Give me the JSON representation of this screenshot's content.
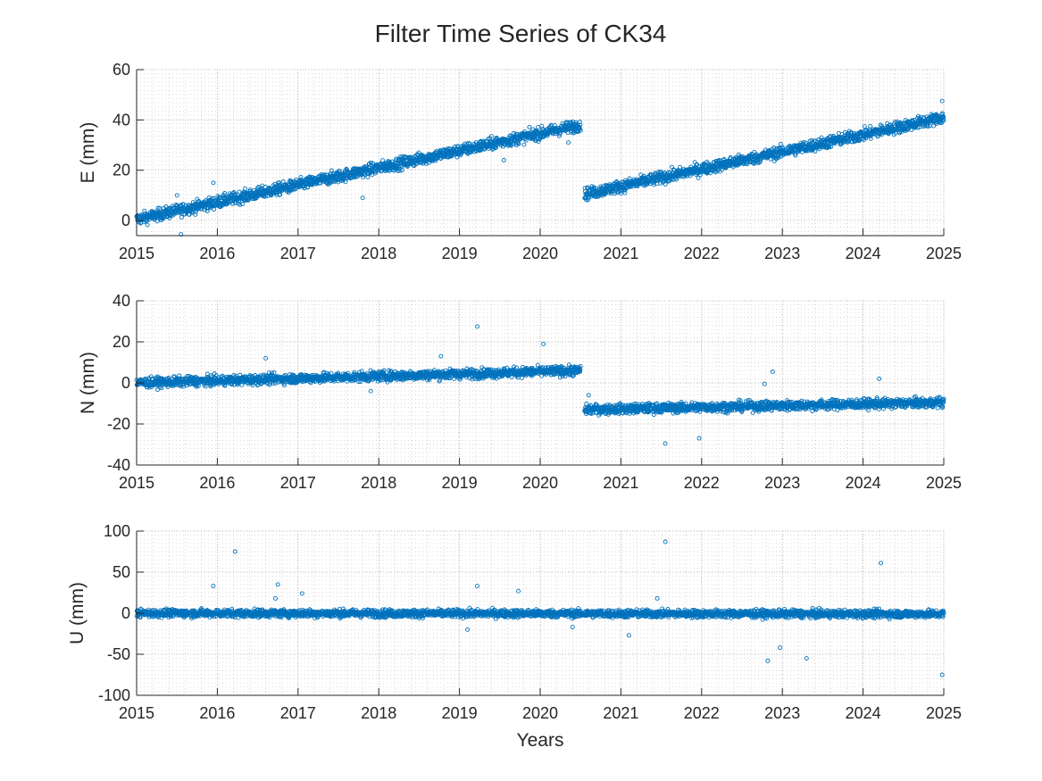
{
  "figure": {
    "title": "Filter Time Series of CK34",
    "xlabel": "Years"
  },
  "colors": {
    "marker": "#0072BD",
    "axis": "#262626",
    "grid": "#c8c8c8",
    "background": "#ffffff"
  },
  "chart_data": [
    {
      "type": "scatter",
      "marker": "open-circle",
      "grid": "major-and-minor-dotted",
      "xlim": [
        2015,
        2025
      ],
      "ylim": [
        -6,
        60
      ],
      "xticks": [
        2015,
        2016,
        2017,
        2018,
        2019,
        2020,
        2021,
        2022,
        2023,
        2024,
        2025
      ],
      "yticks": [
        0,
        20,
        40,
        60
      ],
      "ylabel": "E (mm)",
      "segments": [
        {
          "x": [
            2015.0,
            2020.5
          ],
          "y": [
            0.5,
            38.0
          ],
          "noise": 2.0
        },
        {
          "x": [
            2020.55,
            2025.0
          ],
          "y": [
            10.5,
            41.0
          ],
          "noise": 2.0
        }
      ],
      "outliers": [
        [
          2015.55,
          -5.5
        ],
        [
          2015.95,
          15
        ],
        [
          2017.8,
          9
        ],
        [
          2019.55,
          24
        ],
        [
          2020.35,
          31
        ],
        [
          2024.98,
          47.5
        ],
        [
          2015.5,
          10
        ]
      ]
    },
    {
      "type": "scatter",
      "marker": "open-circle",
      "grid": "major-and-minor-dotted",
      "xlim": [
        2015,
        2025
      ],
      "ylim": [
        -40,
        40
      ],
      "xticks": [
        2015,
        2016,
        2017,
        2018,
        2019,
        2020,
        2021,
        2022,
        2023,
        2024,
        2025
      ],
      "yticks": [
        -40,
        -20,
        0,
        20,
        40
      ],
      "ylabel": "N (mm)",
      "segments": [
        {
          "x": [
            2015.0,
            2020.5
          ],
          "y": [
            0.0,
            6.0
          ],
          "noise": 2.0
        },
        {
          "x": [
            2020.55,
            2025.0
          ],
          "y": [
            -13.0,
            -9.5
          ],
          "noise": 2.0
        }
      ],
      "outliers": [
        [
          2019.22,
          27.5
        ],
        [
          2020.04,
          19
        ],
        [
          2016.6,
          12
        ],
        [
          2018.77,
          13
        ],
        [
          2021.55,
          -29.5
        ],
        [
          2021.97,
          -27
        ],
        [
          2022.78,
          -0.5
        ],
        [
          2022.88,
          5.5
        ],
        [
          2024.2,
          2
        ],
        [
          2020.6,
          -6
        ],
        [
          2017.9,
          -4
        ]
      ]
    },
    {
      "type": "scatter",
      "marker": "open-circle",
      "grid": "major-and-minor-dotted",
      "xlim": [
        2015,
        2025
      ],
      "ylim": [
        -100,
        100
      ],
      "xticks": [
        2015,
        2016,
        2017,
        2018,
        2019,
        2020,
        2021,
        2022,
        2023,
        2024,
        2025
      ],
      "yticks": [
        -100,
        -50,
        0,
        50,
        100
      ],
      "ylabel": "U (mm)",
      "segments": [
        {
          "x": [
            2015.0,
            2025.0
          ],
          "y": [
            0.0,
            -1.0
          ],
          "noise": 4.0
        }
      ],
      "outliers": [
        [
          2015.95,
          33
        ],
        [
          2016.22,
          75
        ],
        [
          2016.75,
          35
        ],
        [
          2016.72,
          18
        ],
        [
          2017.05,
          24
        ],
        [
          2019.22,
          33
        ],
        [
          2019.73,
          27
        ],
        [
          2021.55,
          87
        ],
        [
          2021.45,
          18
        ],
        [
          2021.1,
          -27
        ],
        [
          2022.82,
          -58
        ],
        [
          2022.97,
          -42
        ],
        [
          2023.3,
          -55
        ],
        [
          2024.22,
          61
        ],
        [
          2024.98,
          -75
        ],
        [
          2019.1,
          -20
        ],
        [
          2020.4,
          -17
        ]
      ]
    }
  ]
}
